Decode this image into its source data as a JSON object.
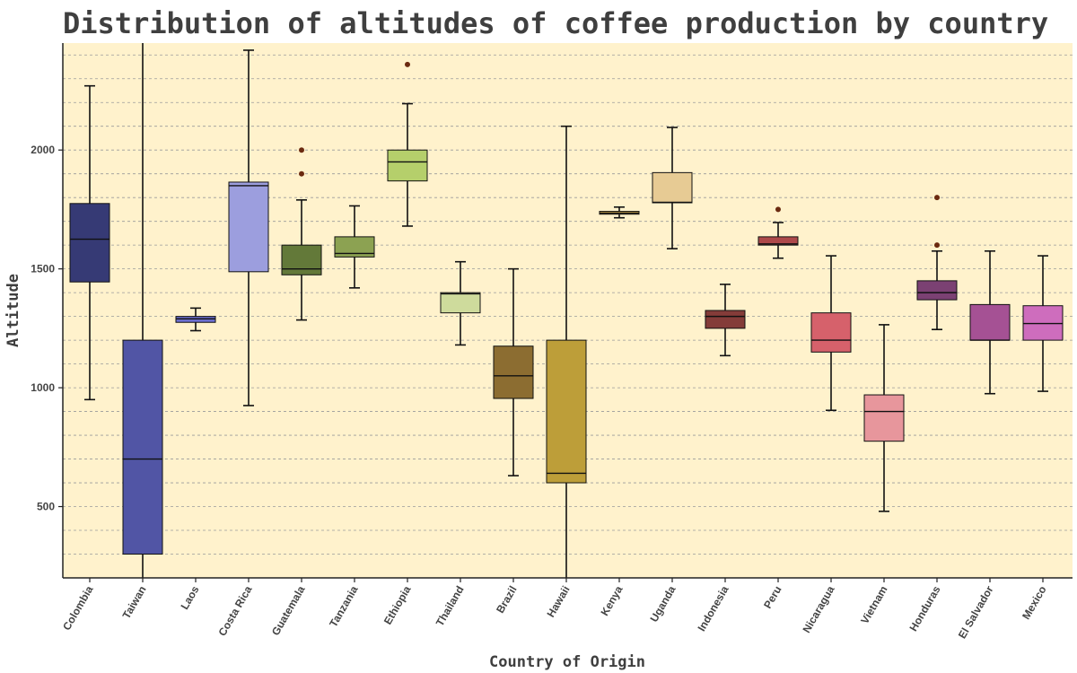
{
  "chart_data": {
    "type": "boxplot",
    "title": "Distribution of altitudes of coffee production by country",
    "xlabel": "Country of Origin",
    "ylabel": "Altitude",
    "ylim": [
      200,
      2450
    ],
    "yticks": [
      500,
      1000,
      1500,
      2000
    ],
    "minor_grid_step": 100,
    "grid": "horizontal dashed",
    "plot_background": "#fff2cc",
    "categories": [
      "Colombia",
      "Taiwan",
      "Laos",
      "Costa Rica",
      "Guatemala",
      "Tanzania",
      "Ethiopia",
      "Thailand",
      "Brazil",
      "Hawaii",
      "Kenya",
      "Uganda",
      "Indonesia",
      "Peru",
      "Nicaragua",
      "Vietnam",
      "Honduras",
      "El Salvador",
      "Mexico"
    ],
    "boxes": [
      {
        "category": "Colombia",
        "whisker_low": 950,
        "q1": 1445,
        "median": 1625,
        "q3": 1775,
        "whisker_high": 2270,
        "outliers": [],
        "color": "#363a75"
      },
      {
        "category": "Taiwan",
        "whisker_low": 0,
        "q1": 300,
        "median": 700,
        "q3": 1200,
        "whisker_high": 2700,
        "outliers": [],
        "color": "#5155a5"
      },
      {
        "category": "Laos",
        "whisker_low": 1240,
        "q1": 1275,
        "median": 1290,
        "q3": 1300,
        "whisker_high": 1335,
        "outliers": [],
        "color": "#6b6ecf"
      },
      {
        "category": "Costa Rica",
        "whisker_low": 925,
        "q1": 1488,
        "median": 1850,
        "q3": 1865,
        "whisker_high": 2420,
        "outliers": [],
        "color": "#9c9ede"
      },
      {
        "category": "Guatemala",
        "whisker_low": 1285,
        "q1": 1475,
        "median": 1500,
        "q3": 1600,
        "whisker_high": 1790,
        "outliers": [
          1900,
          2000
        ],
        "color": "#637939"
      },
      {
        "category": "Tanzania",
        "whisker_low": 1420,
        "q1": 1550,
        "median": 1565,
        "q3": 1635,
        "whisker_high": 1765,
        "outliers": [],
        "color": "#8ca252"
      },
      {
        "category": "Ethiopia",
        "whisker_low": 1680,
        "q1": 1870,
        "median": 1950,
        "q3": 2000,
        "whisker_high": 2195,
        "outliers": [
          2360
        ],
        "color": "#b5cf6b"
      },
      {
        "category": "Thailand",
        "whisker_low": 1180,
        "q1": 1315,
        "median": 1395,
        "q3": 1400,
        "whisker_high": 1530,
        "outliers": [],
        "color": "#cedb9c"
      },
      {
        "category": "Brazil",
        "whisker_low": 630,
        "q1": 955,
        "median": 1050,
        "q3": 1175,
        "whisker_high": 1500,
        "outliers": [],
        "color": "#8c6d31"
      },
      {
        "category": "Hawaii",
        "whisker_low": 0,
        "q1": 600,
        "median": 640,
        "q3": 1200,
        "whisker_high": 2100,
        "outliers": [],
        "color": "#bd9e39"
      },
      {
        "category": "Kenya",
        "whisker_low": 1715,
        "q1": 1730,
        "median": 1735,
        "q3": 1742,
        "whisker_high": 1760,
        "outliers": [],
        "color": "#e7ba52"
      },
      {
        "category": "Uganda",
        "whisker_low": 1585,
        "q1": 1778,
        "median": 1780,
        "q3": 1905,
        "whisker_high": 2095,
        "outliers": [],
        "color": "#e7cb94"
      },
      {
        "category": "Indonesia",
        "whisker_low": 1135,
        "q1": 1250,
        "median": 1300,
        "q3": 1325,
        "whisker_high": 1435,
        "outliers": [],
        "color": "#843c39"
      },
      {
        "category": "Peru",
        "whisker_low": 1545,
        "q1": 1600,
        "median": 1605,
        "q3": 1635,
        "whisker_high": 1695,
        "outliers": [
          1750
        ],
        "color": "#ad494a"
      },
      {
        "category": "Nicaragua",
        "whisker_low": 905,
        "q1": 1150,
        "median": 1200,
        "q3": 1315,
        "whisker_high": 1555,
        "outliers": [],
        "color": "#d6616b"
      },
      {
        "category": "Vietnam",
        "whisker_low": 480,
        "q1": 775,
        "median": 900,
        "q3": 970,
        "whisker_high": 1265,
        "outliers": [],
        "color": "#e7969c"
      },
      {
        "category": "Honduras",
        "whisker_low": 1245,
        "q1": 1370,
        "median": 1400,
        "q3": 1450,
        "whisker_high": 1575,
        "outliers": [
          1600,
          1800
        ],
        "color": "#7b4173"
      },
      {
        "category": "El Salvador",
        "whisker_low": 975,
        "q1": 1200,
        "median": 1200,
        "q3": 1350,
        "whisker_high": 1575,
        "outliers": [],
        "color": "#a55194"
      },
      {
        "category": "Mexico",
        "whisker_low": 985,
        "q1": 1200,
        "median": 1270,
        "q3": 1345,
        "whisker_high": 1555,
        "outliers": [],
        "color": "#ce6dbd"
      }
    ],
    "outlier_color": "#6b2a10"
  }
}
